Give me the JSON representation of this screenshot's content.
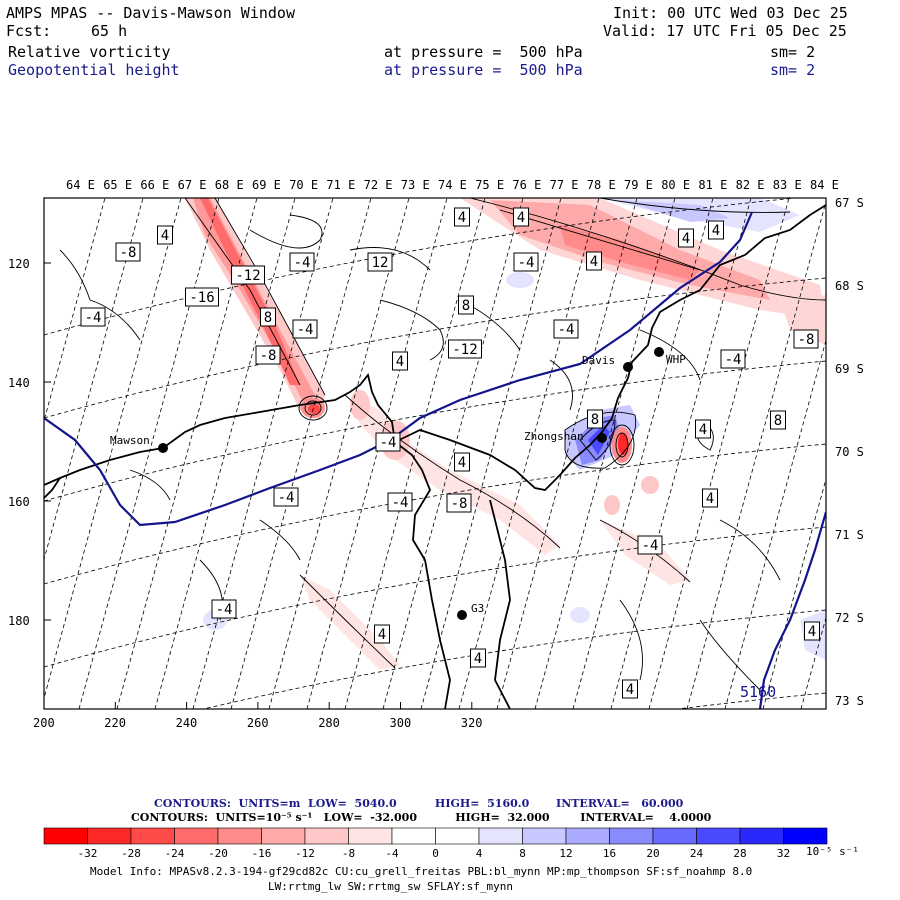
{
  "header": {
    "title": "AMPS MPAS -- Davis-Mawson Window",
    "init": "Init: 00 UTC Wed 03 Dec 25",
    "fcst_label": "Fcst:",
    "fcst_value": "65 h",
    "valid": "Valid: 17 UTC Fri 05 Dec 25",
    "field1": {
      "name": "Relative vorticity",
      "level": "at pressure =  500 hPa",
      "sm": "sm= 2"
    },
    "field2": {
      "name": "Geopotential height",
      "level": "at pressure =  500 hPa",
      "sm": "sm= 2"
    }
  },
  "map": {
    "top_lon_labels": [
      "64 E",
      "65 E",
      "66 E",
      "67 E",
      "68 E",
      "69 E",
      "70 E",
      "71 E",
      "72 E",
      "73 E",
      "74 E",
      "75 E",
      "76 E",
      "77 E",
      "78 E",
      "79 E",
      "80 E",
      "81 E",
      "82 E",
      "83 E",
      "84 E"
    ],
    "right_lat_labels": [
      "67 S",
      "68 S",
      "69 S",
      "70 S",
      "71 S",
      "72 S",
      "73 S"
    ],
    "x_ticks": [
      "200",
      "220",
      "240",
      "260",
      "280",
      "300",
      "320"
    ],
    "y_ticks": [
      "120",
      "140",
      "160",
      "180"
    ],
    "stations": [
      "Davis",
      "WHP",
      "Mawson",
      "Zhongshan",
      "G3"
    ],
    "contour_labels": [
      "4",
      "-8",
      "-12",
      "-4",
      "12",
      "-16",
      "-4",
      "8",
      "-4",
      "-8",
      "4",
      "-12",
      "4",
      "-8",
      "-4",
      "8",
      "4",
      "8",
      "4",
      "-4",
      "-4",
      "-4",
      "4",
      "-4",
      "4",
      "4",
      "-4",
      "-4",
      "4",
      "4",
      "4",
      "8",
      "-4",
      "4",
      "4",
      "-8",
      "4"
    ],
    "height_label": "5160",
    "colors": {
      "blue_contour": "#14148c",
      "red": "#ff0000",
      "blue": "#0000ff"
    }
  },
  "legend": {
    "contours_line1": "CONTOURS:  UNITS=m  LOW=  5040.0          HIGH=  5160.0       INTERVAL=   60.000",
    "contours_line2": "CONTOURS:  UNITS=10⁻⁵ s⁻¹   LOW=  -32.000          HIGH=  32.000        INTERVAL=    4.0000",
    "scale_labels": [
      "-32",
      "-28",
      "-24",
      "-20",
      "-16",
      "-12",
      "-8",
      "-4",
      "0",
      "4",
      "8",
      "12",
      "16",
      "20",
      "24",
      "28",
      "32"
    ],
    "units": "10⁻⁵ s⁻¹",
    "colors": [
      "#ff0000",
      "#ff2828",
      "#ff4a4a",
      "#ff6a6a",
      "#ff8a8a",
      "#ffaaaa",
      "#ffc8c8",
      "#ffe4e4",
      "#ffffff",
      "#ffffff",
      "#e4e4ff",
      "#c8c8ff",
      "#aaaaff",
      "#8a8aff",
      "#6a6aff",
      "#4a4aff",
      "#2828ff",
      "#0000ff"
    ]
  },
  "footer": {
    "model_info": "Model Info: MPASv8.2.3-194-gf29cd82c CU:cu_grell_freitas PBL:bl_mynn MP:mp_thompson SF:sf_noahmp 8.0",
    "model_info2": "LW:rrtmg_lw SW:rrtmg_sw SFLAY:sf_mynn"
  }
}
